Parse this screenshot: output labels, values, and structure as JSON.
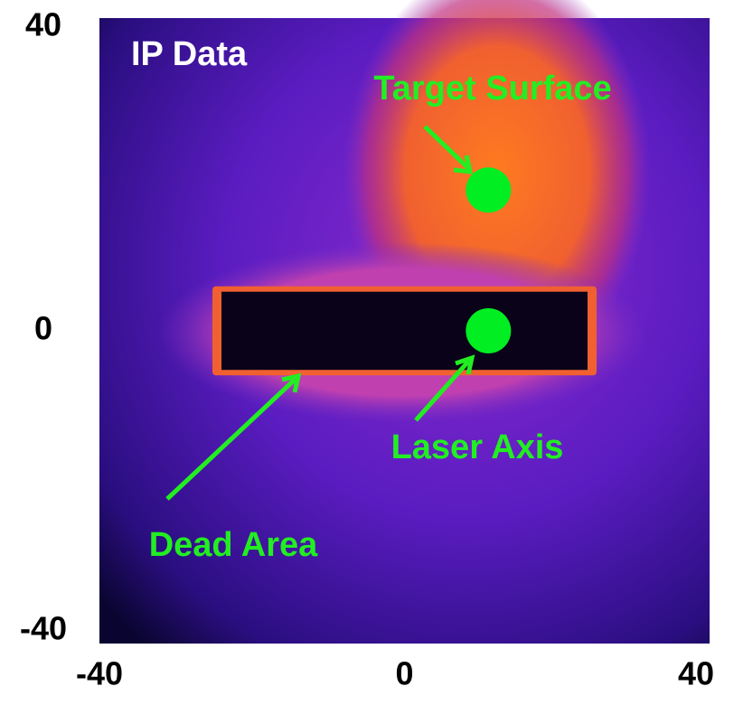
{
  "chart_data": {
    "type": "image",
    "title": "IP Data",
    "xlim": [
      -40,
      40
    ],
    "ylim": [
      -40,
      40
    ],
    "xticks": [
      -40,
      0,
      40
    ],
    "yticks": [
      -40,
      0,
      40
    ],
    "markers": [
      {
        "label": "Target Surface",
        "x": 11,
        "y": 18,
        "color": "#00ee22"
      },
      {
        "label": "Laser Axis",
        "x": 11,
        "y": 0,
        "color": "#00ee22"
      }
    ],
    "dead_area": {
      "label": "Dead Area",
      "x": [
        -24,
        24
      ],
      "y": [
        -5,
        5
      ]
    }
  }
}
